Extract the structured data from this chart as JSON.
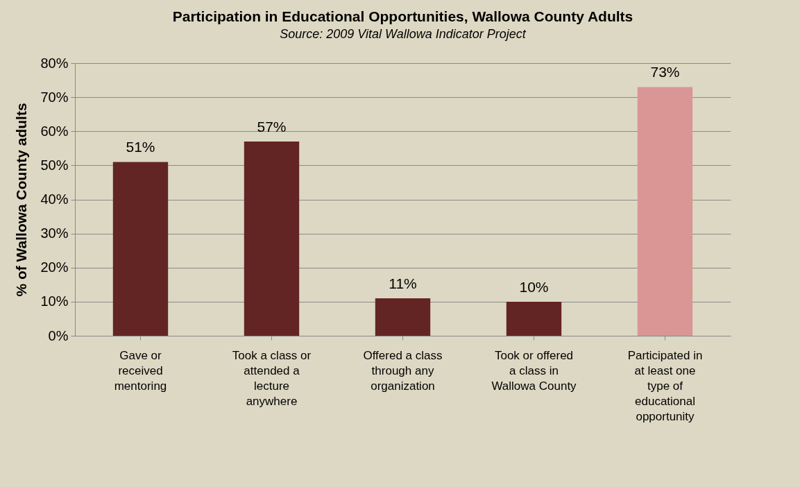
{
  "chart_data": {
    "type": "bar",
    "title": "Participation in Educational Opportunities, Wallowa County Adults",
    "subtitle": "Source: 2009 Vital Wallowa Indicator Project",
    "ylabel": "% of Wallowa County adults",
    "categories": [
      "Gave or received mentoring",
      "Took a class or attended a lecture anywhere",
      "Offered a class through any organization",
      "Took or offered a class in Wallowa County",
      "Participated in at least one type of educational opportunity"
    ],
    "values": [
      51,
      57,
      11,
      10,
      73
    ],
    "colors": [
      "#632523",
      "#632523",
      "#632523",
      "#632523",
      "#d99694"
    ],
    "value_labels": [
      "51%",
      "57%",
      "11%",
      "10%",
      "73%"
    ],
    "ylim": [
      0,
      80
    ],
    "yticks": [
      {
        "value": 0,
        "label": "0%"
      },
      {
        "value": 10,
        "label": "10%"
      },
      {
        "value": 20,
        "label": "20%"
      },
      {
        "value": 30,
        "label": "30%"
      },
      {
        "value": 40,
        "label": "40%"
      },
      {
        "value": 50,
        "label": "50%"
      },
      {
        "value": 60,
        "label": "60%"
      },
      {
        "value": 70,
        "label": "70%"
      },
      {
        "value": 80,
        "label": "80%"
      }
    ],
    "grid": "y"
  }
}
